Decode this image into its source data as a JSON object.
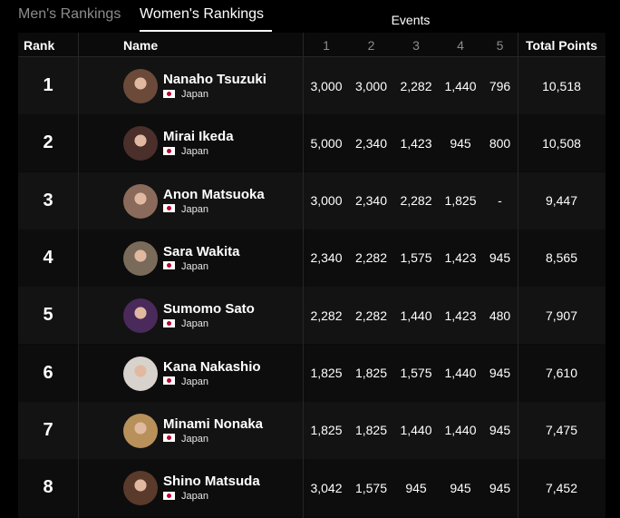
{
  "tabs": [
    {
      "label": "Men's Rankings",
      "active": false
    },
    {
      "label": "Women's Rankings",
      "active": true
    }
  ],
  "table": {
    "events_label": "Events",
    "headers": {
      "rank": "Rank",
      "name": "Name",
      "events": [
        "1",
        "2",
        "3",
        "4",
        "5"
      ],
      "total": "Total Points"
    },
    "rows": [
      {
        "rank": "1",
        "name": "Nanaho Tsuzuki",
        "country": "Japan",
        "events": [
          "3,000",
          "3,000",
          "2,282",
          "1,440",
          "796"
        ],
        "total": "10,518",
        "avatar_color": "#6b4a3a"
      },
      {
        "rank": "2",
        "name": "Mirai Ikeda",
        "country": "Japan",
        "events": [
          "5,000",
          "2,340",
          "1,423",
          "945",
          "800"
        ],
        "total": "10,508",
        "avatar_color": "#4a2f2a"
      },
      {
        "rank": "3",
        "name": "Anon Matsuoka",
        "country": "Japan",
        "events": [
          "3,000",
          "2,340",
          "2,282",
          "1,825",
          "-"
        ],
        "total": "9,447",
        "avatar_color": "#8a6a5a"
      },
      {
        "rank": "4",
        "name": "Sara Wakita",
        "country": "Japan",
        "events": [
          "2,340",
          "2,282",
          "1,575",
          "1,423",
          "945"
        ],
        "total": "8,565",
        "avatar_color": "#7a6a5a"
      },
      {
        "rank": "5",
        "name": "Sumomo Sato",
        "country": "Japan",
        "events": [
          "2,282",
          "2,282",
          "1,440",
          "1,423",
          "480"
        ],
        "total": "7,907",
        "avatar_color": "#4a2a5a"
      },
      {
        "rank": "6",
        "name": "Kana Nakashio",
        "country": "Japan",
        "events": [
          "1,825",
          "1,825",
          "1,575",
          "1,440",
          "945"
        ],
        "total": "7,610",
        "avatar_color": "#d8d2cc"
      },
      {
        "rank": "7",
        "name": "Minami Nonaka",
        "country": "Japan",
        "events": [
          "1,825",
          "1,825",
          "1,440",
          "1,440",
          "945"
        ],
        "total": "7,475",
        "avatar_color": "#b8905a"
      },
      {
        "rank": "8",
        "name": "Shino Matsuda",
        "country": "Japan",
        "events": [
          "3,042",
          "1,575",
          "945",
          "945",
          "945"
        ],
        "total": "7,452",
        "avatar_color": "#5a3a2a"
      }
    ]
  }
}
